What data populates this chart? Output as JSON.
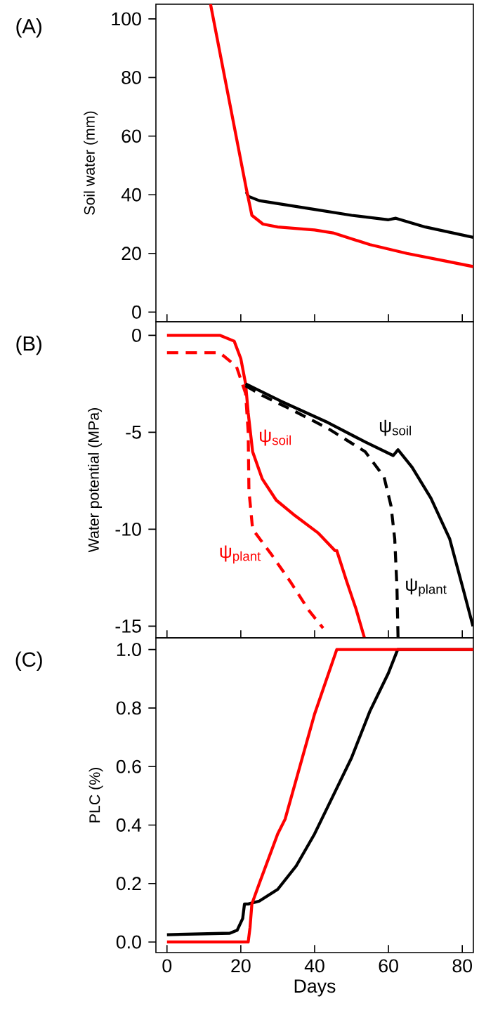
{
  "chart_data": [
    {
      "type": "line",
      "title": "(A)",
      "ylabel": "Soil water (mm)",
      "xlim": [
        -3,
        83
      ],
      "ylim": [
        -3.3,
        105
      ],
      "xticks": [
        0,
        20,
        40,
        60,
        80
      ],
      "yticks": [
        0,
        20,
        40,
        60,
        80,
        100
      ],
      "tick_labels": "y",
      "grid": false,
      "series": [
        {
          "color": "#000000",
          "line_style": "solid",
          "x": [
            21.5,
            22,
            25,
            30,
            40,
            50,
            60,
            62,
            70,
            83
          ],
          "values": [
            41,
            39.5,
            38,
            37,
            35,
            33,
            31.5,
            32,
            29,
            25.5
          ]
        },
        {
          "color": "#ff0000",
          "line_style": "solid",
          "x": [
            11.8,
            21.5,
            23,
            26,
            30,
            40,
            45,
            55,
            65,
            75,
            83
          ],
          "values": [
            105,
            42,
            33,
            30,
            29,
            28,
            27,
            23,
            20,
            17.5,
            15.5
          ]
        }
      ]
    },
    {
      "type": "line",
      "title": "(B)",
      "ylabel": "Water potential (MPa)",
      "xlim": [
        -3,
        83
      ],
      "ylim": [
        -15.6,
        0.7
      ],
      "xticks": [
        0,
        20,
        40,
        60,
        80
      ],
      "yticks": [
        -15,
        -10,
        -5,
        0
      ],
      "tick_labels": "y",
      "grid": false,
      "series": [
        {
          "name": "ψ$_{soil}$",
          "color": "#ff0000",
          "line_style": "solid",
          "x": [
            0,
            14.3,
            18.2,
            20,
            21.3,
            22,
            23.2,
            25.8,
            29.6,
            34.7,
            41,
            45.5,
            46,
            48.7,
            51.2,
            53.5
          ],
          "values": [
            0,
            0,
            -0.3,
            -1.2,
            -2.5,
            -4,
            -6,
            -7.4,
            -8.5,
            -9.3,
            -10.2,
            -11.1,
            -11.1,
            -12.7,
            -14.1,
            -15.6
          ]
        },
        {
          "name": "ψ$_{plant}$",
          "color": "#ff0000",
          "line_style": "dashed",
          "x": [
            0,
            14.3,
            18.8,
            21.3,
            22,
            22.2,
            23.2,
            28.3,
            33.4,
            38.5,
            42.3
          ],
          "values": [
            -0.9,
            -0.9,
            -1.6,
            -3,
            -5,
            -8,
            -10,
            -11.3,
            -12.7,
            -14.2,
            -15.1
          ]
        },
        {
          "name": "ψ$_{soil}$",
          "color": "#000000",
          "line_style": "solid",
          "x": [
            21.3,
            24.5,
            30.9,
            43.6,
            53.7,
            61.3,
            62.6,
            66.4,
            71.5,
            76.6,
            80.4,
            82.9
          ],
          "values": [
            -2.5,
            -2.8,
            -3.4,
            -4.5,
            -5.5,
            -6.2,
            -5.9,
            -6.8,
            -8.4,
            -10.5,
            -13.2,
            -15
          ]
        },
        {
          "name": "ψ$_{plant}$",
          "color": "#000000",
          "line_style": "dashed",
          "x": [
            21.3,
            25.8,
            33.4,
            43.6,
            53.7,
            58.8,
            60.7,
            61.7,
            62.3,
            62.6
          ],
          "values": [
            -2.6,
            -3.1,
            -3.8,
            -4.8,
            -6.0,
            -7.3,
            -8.8,
            -10.5,
            -13,
            -15.6
          ]
        }
      ]
    },
    {
      "type": "line",
      "title": "(C)",
      "ylabel": "PLC (%)",
      "xlabel": "Days",
      "xlim": [
        -3,
        83
      ],
      "ylim": [
        -0.036,
        1.04
      ],
      "xticks": [
        0,
        20,
        40,
        60,
        80
      ],
      "yticks": [
        {
          "value": 0,
          "label": "0.0"
        },
        0.2,
        0.4,
        0.6,
        0.8,
        {
          "value": 1,
          "label": "1.0"
        }
      ],
      "grid": false,
      "series": [
        {
          "color": "#000000",
          "line_style": "solid",
          "x": [
            0,
            17,
            19,
            20.5,
            21,
            22,
            25,
            30,
            35,
            40,
            45,
            50,
            55,
            60,
            62.5,
            83
          ],
          "values": [
            0.025,
            0.03,
            0.04,
            0.08,
            0.13,
            0.13,
            0.14,
            0.18,
            0.26,
            0.37,
            0.5,
            0.63,
            0.79,
            0.92,
            1.0,
            1.0
          ]
        },
        {
          "color": "#ff0000",
          "line_style": "solid",
          "x": [
            0,
            22,
            22.5,
            23,
            25,
            30,
            32,
            40,
            46,
            83
          ],
          "values": [
            0,
            0,
            0.05,
            0.13,
            0.2,
            0.37,
            0.42,
            0.78,
            1.0,
            1.0
          ]
        }
      ]
    }
  ]
}
